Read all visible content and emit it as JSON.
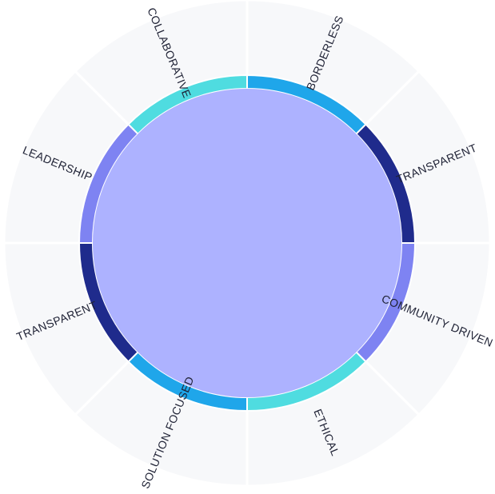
{
  "colors": {
    "background": "#ffffff",
    "outer_segment": "#f7f8fa",
    "divider": "#ffffff",
    "center": "#adb2ff",
    "cyan": "#4fdce0",
    "sky": "#1fa6ea",
    "navy": "#1f2b8c",
    "periwinkle": "#7e83f2",
    "label": "#1f2235"
  },
  "segments": [
    {
      "label": "BORDERLESS",
      "ring_color": "sky"
    },
    {
      "label": "TRANSPARENT",
      "ring_color": "navy"
    },
    {
      "label": "COMMUNITY DRIVEN",
      "ring_color": "periwinkle"
    },
    {
      "label": "ETHICAL",
      "ring_color": "cyan"
    },
    {
      "label": "SOLUTION FOCUSED",
      "ring_color": "sky"
    },
    {
      "label": "TRANSPARENT",
      "ring_color": "navy"
    },
    {
      "label": "LEADERSHIP",
      "ring_color": "periwinkle"
    },
    {
      "label": "COLLABORATIVE",
      "ring_color": "cyan"
    }
  ]
}
